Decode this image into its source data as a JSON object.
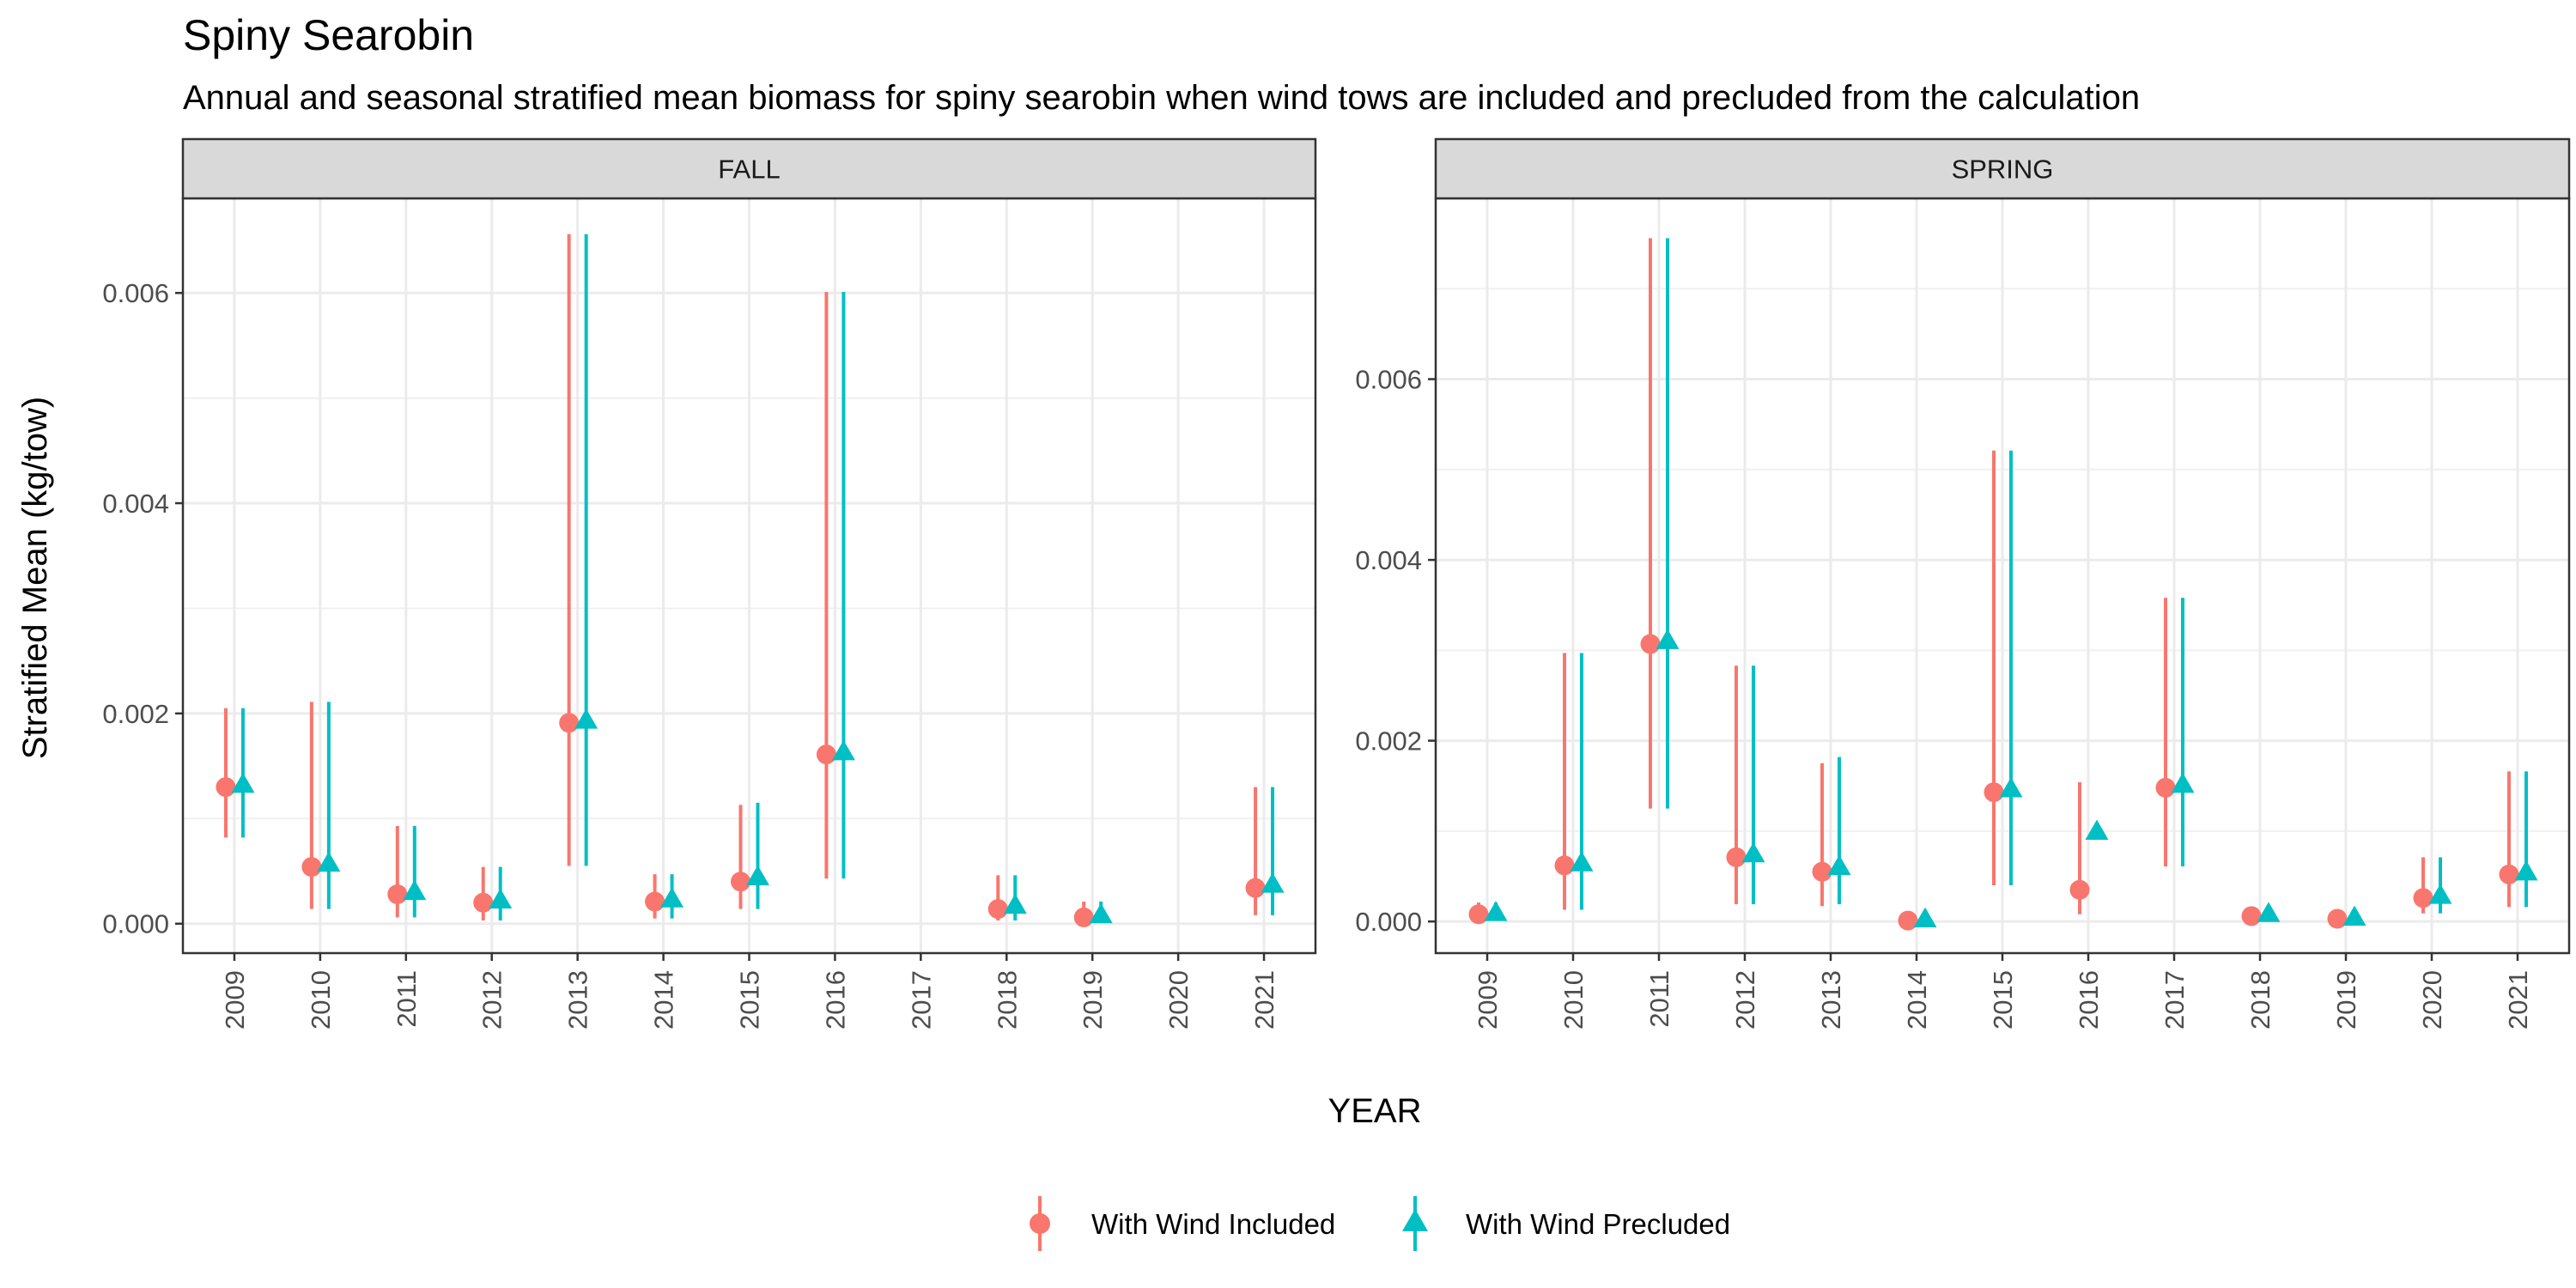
{
  "chart_data": {
    "type": "scatter",
    "title": "Spiny Searobin",
    "subtitle": "Annual and seasonal stratified mean biomass for spiny searobin when wind tows are included and precluded from the calculation",
    "xlabel": "YEAR",
    "ylabel": "Stratified Mean (kg/tow)",
    "grid": true,
    "legend_position": "bottom",
    "series_styles": [
      {
        "name": "With Wind Included",
        "color": "#F8766D",
        "marker": "circle"
      },
      {
        "name": "With Wind Precluded",
        "color": "#00BFC4",
        "marker": "triangle"
      }
    ],
    "panels": [
      {
        "label": "FALL",
        "categories": [
          "2009",
          "2010",
          "2011",
          "2012",
          "2013",
          "2014",
          "2015",
          "2016",
          "2017",
          "2018",
          "2019",
          "2020",
          "2021"
        ],
        "ylim": [
          -0.00028,
          0.0069
        ],
        "yticks": [
          0.0,
          0.002,
          0.004,
          0.006
        ],
        "ytick_labels": [
          "0.000",
          "0.002",
          "0.004",
          "0.006"
        ],
        "series": [
          {
            "name": "With Wind Included",
            "points": [
              {
                "x": "2009",
                "y": 0.0013,
                "low": 0.00082,
                "high": 0.00205
              },
              {
                "x": "2010",
                "y": 0.00054,
                "low": 0.00014,
                "high": 0.00211
              },
              {
                "x": "2011",
                "y": 0.00028,
                "low": 6e-05,
                "high": 0.00093
              },
              {
                "x": "2012",
                "y": 0.0002,
                "low": 3e-05,
                "high": 0.00054
              },
              {
                "x": "2013",
                "y": 0.00191,
                "low": 0.00055,
                "high": 0.00656
              },
              {
                "x": "2014",
                "y": 0.00021,
                "low": 5e-05,
                "high": 0.00047
              },
              {
                "x": "2015",
                "y": 0.0004,
                "low": 0.00014,
                "high": 0.00113
              },
              {
                "x": "2016",
                "y": 0.00161,
                "low": 0.00043,
                "high": 0.00601
              },
              {
                "x": "2018",
                "y": 0.00014,
                "low": 3e-05,
                "high": 0.00046
              },
              {
                "x": "2019",
                "y": 6e-05,
                "low": 1e-05,
                "high": 0.00021
              },
              {
                "x": "2021",
                "y": 0.00034,
                "low": 8e-05,
                "high": 0.0013
              }
            ]
          },
          {
            "name": "With Wind Precluded",
            "points": [
              {
                "x": "2009",
                "y": 0.00131,
                "low": 0.00082,
                "high": 0.00205
              },
              {
                "x": "2010",
                "y": 0.00056,
                "low": 0.00014,
                "high": 0.00211
              },
              {
                "x": "2011",
                "y": 0.00029,
                "low": 6e-05,
                "high": 0.00093
              },
              {
                "x": "2012",
                "y": 0.00021,
                "low": 3e-05,
                "high": 0.00054
              },
              {
                "x": "2013",
                "y": 0.00192,
                "low": 0.00055,
                "high": 0.00656
              },
              {
                "x": "2014",
                "y": 0.00022,
                "low": 5e-05,
                "high": 0.00047
              },
              {
                "x": "2015",
                "y": 0.00043,
                "low": 0.00014,
                "high": 0.00115
              },
              {
                "x": "2016",
                "y": 0.00162,
                "low": 0.00043,
                "high": 0.00601
              },
              {
                "x": "2018",
                "y": 0.00016,
                "low": 3e-05,
                "high": 0.00046
              },
              {
                "x": "2019",
                "y": 7e-05,
                "low": 1e-05,
                "high": 0.00021
              },
              {
                "x": "2021",
                "y": 0.00036,
                "low": 8e-05,
                "high": 0.0013
              }
            ]
          }
        ]
      },
      {
        "label": "SPRING",
        "categories": [
          "2009",
          "2010",
          "2011",
          "2012",
          "2013",
          "2014",
          "2015",
          "2016",
          "2017",
          "2018",
          "2019",
          "2020",
          "2021"
        ],
        "ylim": [
          -0.00035,
          0.008
        ],
        "yticks": [
          0.0,
          0.002,
          0.004,
          0.006
        ],
        "ytick_labels": [
          "0.000",
          "0.002",
          "0.004",
          "0.006"
        ],
        "series": [
          {
            "name": "With Wind Included",
            "points": [
              {
                "x": "2009",
                "y": 8e-05,
                "low": 2e-05,
                "high": 0.00021
              },
              {
                "x": "2010",
                "y": 0.00062,
                "low": 0.00013,
                "high": 0.00297
              },
              {
                "x": "2011",
                "y": 0.00307,
                "low": 0.00125,
                "high": 0.00756
              },
              {
                "x": "2012",
                "y": 0.00071,
                "low": 0.00019,
                "high": 0.00283
              },
              {
                "x": "2013",
                "y": 0.00055,
                "low": 0.00017,
                "high": 0.00175
              },
              {
                "x": "2014",
                "y": 1e-05,
                "low": 0.0,
                "high": 3e-05
              },
              {
                "x": "2015",
                "y": 0.00143,
                "low": 0.0004,
                "high": 0.00521
              },
              {
                "x": "2016",
                "y": 0.00035,
                "low": 8e-05,
                "high": 0.00154
              },
              {
                "x": "2017",
                "y": 0.00148,
                "low": 0.00061,
                "high": 0.00358
              },
              {
                "x": "2018",
                "y": 6e-05,
                "low": 2e-05,
                "high": 0.00013
              },
              {
                "x": "2019",
                "y": 3e-05,
                "low": 1e-05,
                "high": 7e-05
              },
              {
                "x": "2020",
                "y": 0.00026,
                "low": 9e-05,
                "high": 0.00071
              },
              {
                "x": "2021",
                "y": 0.00052,
                "low": 0.00016,
                "high": 0.00166
              }
            ]
          },
          {
            "name": "With Wind Precluded",
            "points": [
              {
                "x": "2009",
                "y": 8e-05,
                "low": 2e-05,
                "high": 0.00021
              },
              {
                "x": "2010",
                "y": 0.00063,
                "low": 0.00013,
                "high": 0.00297
              },
              {
                "x": "2011",
                "y": 0.00309,
                "low": 0.00125,
                "high": 0.00756
              },
              {
                "x": "2012",
                "y": 0.00073,
                "low": 0.00019,
                "high": 0.00283
              },
              {
                "x": "2013",
                "y": 0.00059,
                "low": 0.00019,
                "high": 0.00182
              },
              {
                "x": "2014",
                "y": 1e-05,
                "low": 0.0,
                "high": 3e-05
              },
              {
                "x": "2015",
                "y": 0.00145,
                "low": 0.0004,
                "high": 0.00521
              },
              {
                "x": "2016",
                "y": 0.00098,
                "low": null,
                "high": null
              },
              {
                "x": "2017",
                "y": 0.0015,
                "low": 0.00061,
                "high": 0.00358
              },
              {
                "x": "2018",
                "y": 7e-05,
                "low": 2e-05,
                "high": 0.00013
              },
              {
                "x": "2019",
                "y": 3e-05,
                "low": 1e-05,
                "high": 7e-05
              },
              {
                "x": "2020",
                "y": 0.00027,
                "low": 9e-05,
                "high": 0.00071
              },
              {
                "x": "2021",
                "y": 0.00053,
                "low": 0.00016,
                "high": 0.00166
              }
            ]
          }
        ]
      }
    ]
  }
}
